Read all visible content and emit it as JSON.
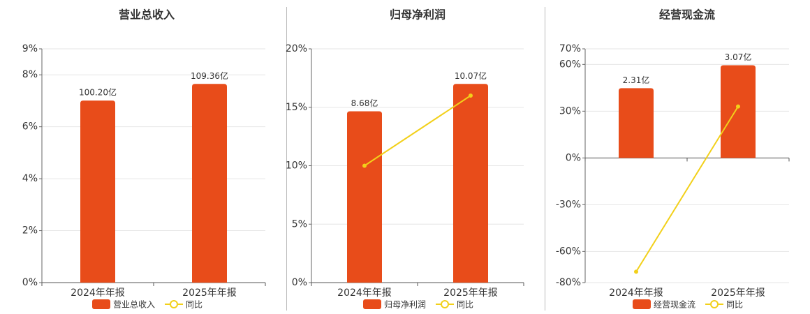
{
  "chart_data": [
    {
      "type": "bar",
      "title": "营业总收入",
      "categories": [
        "2024年年报",
        "2025年年报"
      ],
      "series": [
        {
          "name": "营业总收入",
          "color": "#e84c1a",
          "values": [
            100.2,
            109.36
          ],
          "value_labels": [
            "100.20亿",
            "109.36亿"
          ]
        },
        {
          "name": "同比",
          "type": "line",
          "color": "#f2d01a",
          "values": [
            null,
            null
          ]
        }
      ],
      "ylim": [
        0,
        9
      ],
      "yticks": [
        {
          "value": 0,
          "label": "0%"
        },
        {
          "value": 2,
          "label": "2%"
        },
        {
          "value": 4,
          "label": "4%"
        },
        {
          "value": 6,
          "label": "6%"
        },
        {
          "value": 8,
          "label": "8%"
        },
        {
          "value": 9,
          "label": "9%"
        }
      ],
      "grid": true
    },
    {
      "type": "bar",
      "title": "归母净利润",
      "categories": [
        "2024年年报",
        "2025年年报"
      ],
      "series": [
        {
          "name": "归母净利润",
          "color": "#e84c1a",
          "values": [
            8.68,
            10.07
          ],
          "value_labels": [
            "8.68亿",
            "10.07亿"
          ]
        },
        {
          "name": "同比",
          "type": "line",
          "color": "#f2d01a",
          "values": [
            10,
            16
          ]
        }
      ],
      "ylim": [
        0,
        20
      ],
      "yticks": [
        {
          "value": 0,
          "label": "0%"
        },
        {
          "value": 5,
          "label": "5%"
        },
        {
          "value": 10,
          "label": "10%"
        },
        {
          "value": 15,
          "label": "15%"
        },
        {
          "value": 20,
          "label": "20%"
        }
      ],
      "grid": true
    },
    {
      "type": "bar",
      "title": "经营现金流",
      "categories": [
        "2024年年报",
        "2025年年报"
      ],
      "series": [
        {
          "name": "经营现金流",
          "color": "#e84c1a",
          "values": [
            2.31,
            3.07
          ],
          "value_labels": [
            "2.31亿",
            "3.07亿"
          ]
        },
        {
          "name": "同比",
          "type": "line",
          "color": "#f2d01a",
          "values": [
            -73,
            33
          ]
        }
      ],
      "ylim": [
        -80,
        70
      ],
      "yticks": [
        {
          "value": -80,
          "label": "-80%"
        },
        {
          "value": -60,
          "label": "-60%"
        },
        {
          "value": -30,
          "label": "-30%"
        },
        {
          "value": 0,
          "label": "0%"
        },
        {
          "value": 30,
          "label": "30%"
        },
        {
          "value": 60,
          "label": "60%"
        },
        {
          "value": 70,
          "label": "70%"
        }
      ],
      "grid": true
    }
  ]
}
